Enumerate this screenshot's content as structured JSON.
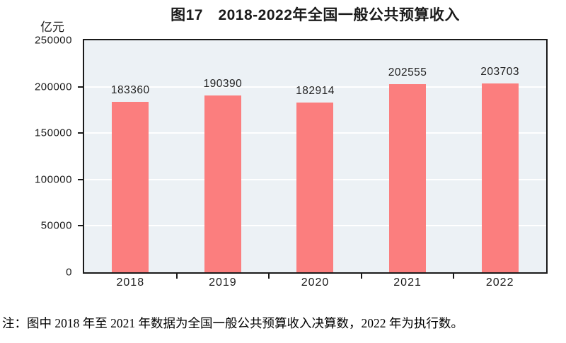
{
  "header": {
    "unit": "亿元",
    "title": "图17　2018-2022年全国一般公共预算收入"
  },
  "chart_data": {
    "type": "bar",
    "title": "图17　2018-2022年全国一般公共预算收入",
    "categories": [
      "2018",
      "2019",
      "2020",
      "2021",
      "2022"
    ],
    "values": [
      183360,
      190390,
      182914,
      202555,
      203703
    ],
    "xlabel": "",
    "ylabel": "亿元",
    "ylim": [
      0,
      250000
    ],
    "yticks": [
      0,
      50000,
      100000,
      150000,
      200000,
      250000
    ],
    "grid": true,
    "legend_position": "none",
    "colors": {
      "bar": "#FB7E7E",
      "plot_background": "#ECF1F5",
      "gridline": "#FFFFFF",
      "frame": "#1A1A1A",
      "text": "#1A1A1A"
    }
  },
  "note": "注：图中 2018 年至 2021 年数据为全国一般公共预算收入决算数，2022 年为执行数。"
}
